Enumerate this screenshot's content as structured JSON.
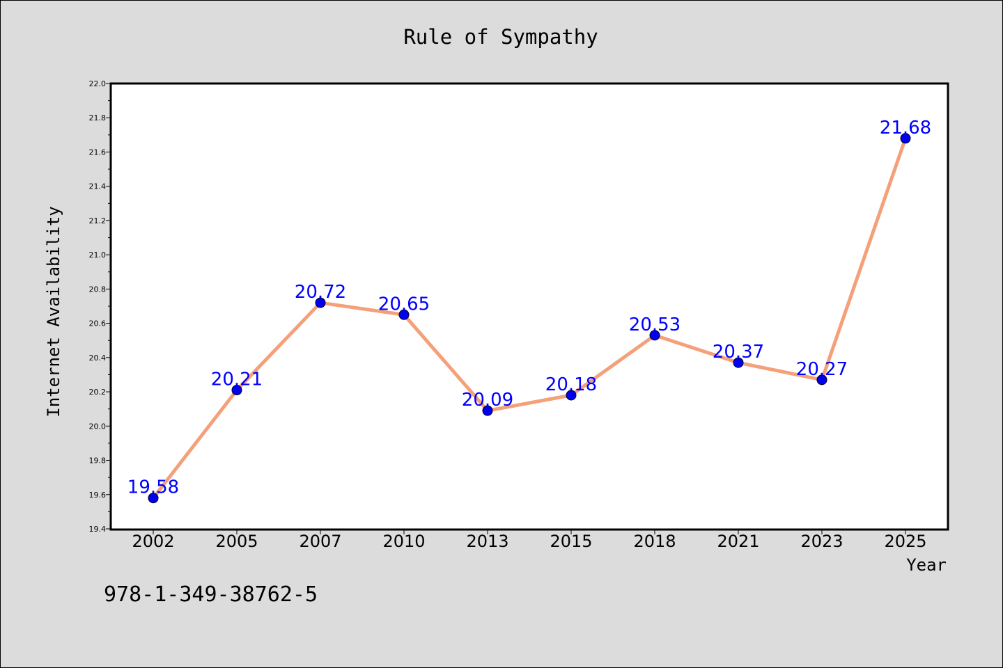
{
  "chart_data": {
    "type": "line",
    "title": "Rule of Sympathy",
    "xlabel": "Year",
    "ylabel": "Internet Availability",
    "categories": [
      "2002",
      "2005",
      "2007",
      "2010",
      "2013",
      "2015",
      "2018",
      "2021",
      "2023",
      "2025"
    ],
    "values": [
      19.58,
      20.21,
      20.72,
      20.65,
      20.09,
      20.18,
      20.53,
      20.37,
      20.27,
      21.68
    ],
    "data_labels": [
      "19.58",
      "20.21",
      "20.72",
      "20.65",
      "20.09",
      "20.18",
      "20.53",
      "20.37",
      "20.27",
      "21.68"
    ],
    "ylim": [
      19.4,
      22.0
    ],
    "yticks": [
      "19.4",
      "19.6",
      "19.8",
      "20.0",
      "20.2",
      "20.4",
      "20.6",
      "20.8",
      "21.0",
      "21.2",
      "21.4",
      "21.6",
      "21.8",
      "22.0"
    ],
    "grid": false,
    "colors": {
      "line": "#f4a07a",
      "marker": "#0000ee",
      "label": "#0000ff",
      "plot_background": "#ffffff",
      "figure_background": "#dcdcdc"
    }
  },
  "footer": {
    "code": "978-1-349-38762-5"
  }
}
